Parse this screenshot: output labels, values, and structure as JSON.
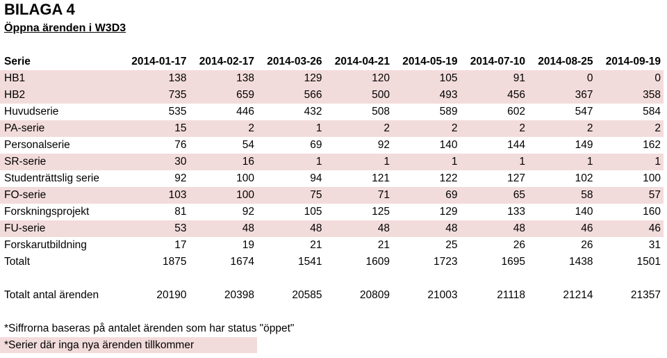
{
  "title": "BILAGA 4",
  "subtitle": "Öppna ärenden i W3D3",
  "table": {
    "header": [
      "Serie",
      "2014-01-17",
      "2014-02-17",
      "2014-03-26",
      "2014-04-21",
      "2014-05-19",
      "2014-07-10",
      "2014-08-25",
      "2014-09-19"
    ],
    "rows": [
      {
        "label": "HB1",
        "values": [
          "138",
          "138",
          "129",
          "120",
          "105",
          "91",
          "0",
          "0"
        ],
        "highlight": true
      },
      {
        "label": "HB2",
        "values": [
          "735",
          "659",
          "566",
          "500",
          "493",
          "456",
          "367",
          "358"
        ],
        "highlight": true
      },
      {
        "label": "Huvudserie",
        "values": [
          "535",
          "446",
          "432",
          "508",
          "589",
          "602",
          "547",
          "584"
        ],
        "highlight": false
      },
      {
        "label": "PA-serie",
        "values": [
          "15",
          "2",
          "1",
          "2",
          "2",
          "2",
          "2",
          "2"
        ],
        "highlight": true
      },
      {
        "label": "Personalserie",
        "values": [
          "76",
          "54",
          "69",
          "92",
          "140",
          "144",
          "149",
          "162"
        ],
        "highlight": false
      },
      {
        "label": "SR-serie",
        "values": [
          "30",
          "16",
          "1",
          "1",
          "1",
          "1",
          "1",
          "1"
        ],
        "highlight": true
      },
      {
        "label": "Studenträttslig serie",
        "values": [
          "92",
          "100",
          "94",
          "121",
          "122",
          "127",
          "102",
          "100"
        ],
        "highlight": false
      },
      {
        "label": "FO-serie",
        "values": [
          "103",
          "100",
          "75",
          "71",
          "69",
          "65",
          "58",
          "57"
        ],
        "highlight": true
      },
      {
        "label": "Forskningsprojekt",
        "values": [
          "81",
          "92",
          "105",
          "125",
          "129",
          "133",
          "140",
          "160"
        ],
        "highlight": false
      },
      {
        "label": "FU-serie",
        "values": [
          "53",
          "48",
          "48",
          "48",
          "48",
          "48",
          "46",
          "46"
        ],
        "highlight": true
      },
      {
        "label": "Forskarutbildning",
        "values": [
          "17",
          "19",
          "21",
          "21",
          "25",
          "26",
          "26",
          "31"
        ],
        "highlight": false
      },
      {
        "label": "Totalt",
        "values": [
          "1875",
          "1674",
          "1541",
          "1609",
          "1723",
          "1695",
          "1438",
          "1501"
        ],
        "highlight": false
      }
    ],
    "total_row": {
      "label": "Totalt antal ärenden",
      "values": [
        "20190",
        "20398",
        "20585",
        "20809",
        "21003",
        "21118",
        "21214",
        "21357"
      ]
    }
  },
  "notes": {
    "note1": "*Siffrorna baseras på antalet ärenden som har status \"öppet\"",
    "note2": "*Serier där inga nya ärenden tillkommer"
  },
  "colors": {
    "highlight": "#f2dcdb"
  }
}
